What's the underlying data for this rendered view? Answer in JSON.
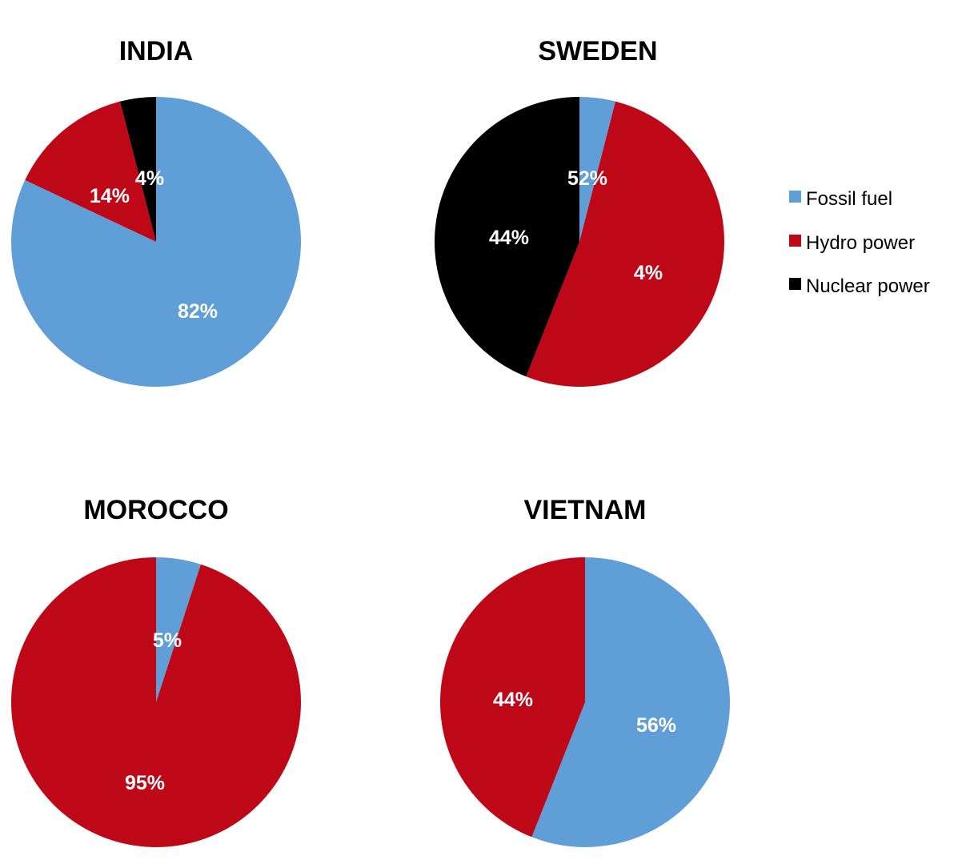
{
  "chart_data": [
    {
      "type": "pie",
      "title": "INDIA",
      "slices": [
        {
          "name": "Fossil fuel",
          "value": 82,
          "label": "82%"
        },
        {
          "name": "Hydro power",
          "value": 14,
          "label": "14%"
        },
        {
          "name": "Nuclear power",
          "value": 4,
          "label": "4%"
        }
      ]
    },
    {
      "type": "pie",
      "title": "SWEDEN",
      "slices": [
        {
          "name": "Fossil fuel",
          "value": 4,
          "label": "4%"
        },
        {
          "name": "Hydro power",
          "value": 52,
          "label": "52%"
        },
        {
          "name": "Nuclear power",
          "value": 44,
          "label": "44%"
        }
      ]
    },
    {
      "type": "pie",
      "title": "MOROCCO",
      "slices": [
        {
          "name": "Fossil fuel",
          "value": 5,
          "label": "5%"
        },
        {
          "name": "Hydro power",
          "value": 95,
          "label": "95%"
        }
      ]
    },
    {
      "type": "pie",
      "title": "VIETNAM",
      "slices": [
        {
          "name": "Fossil fuel",
          "value": 56,
          "label": "56%"
        },
        {
          "name": "Hydro power",
          "value": 44,
          "label": "44%"
        }
      ]
    }
  ],
  "legend": {
    "placement": "right",
    "items": [
      {
        "name": "Fossil fuel",
        "color": "#5f9ed6"
      },
      {
        "name": "Hydro power",
        "color": "#be0817"
      },
      {
        "name": "Nuclear power",
        "color": "#000000"
      }
    ]
  }
}
